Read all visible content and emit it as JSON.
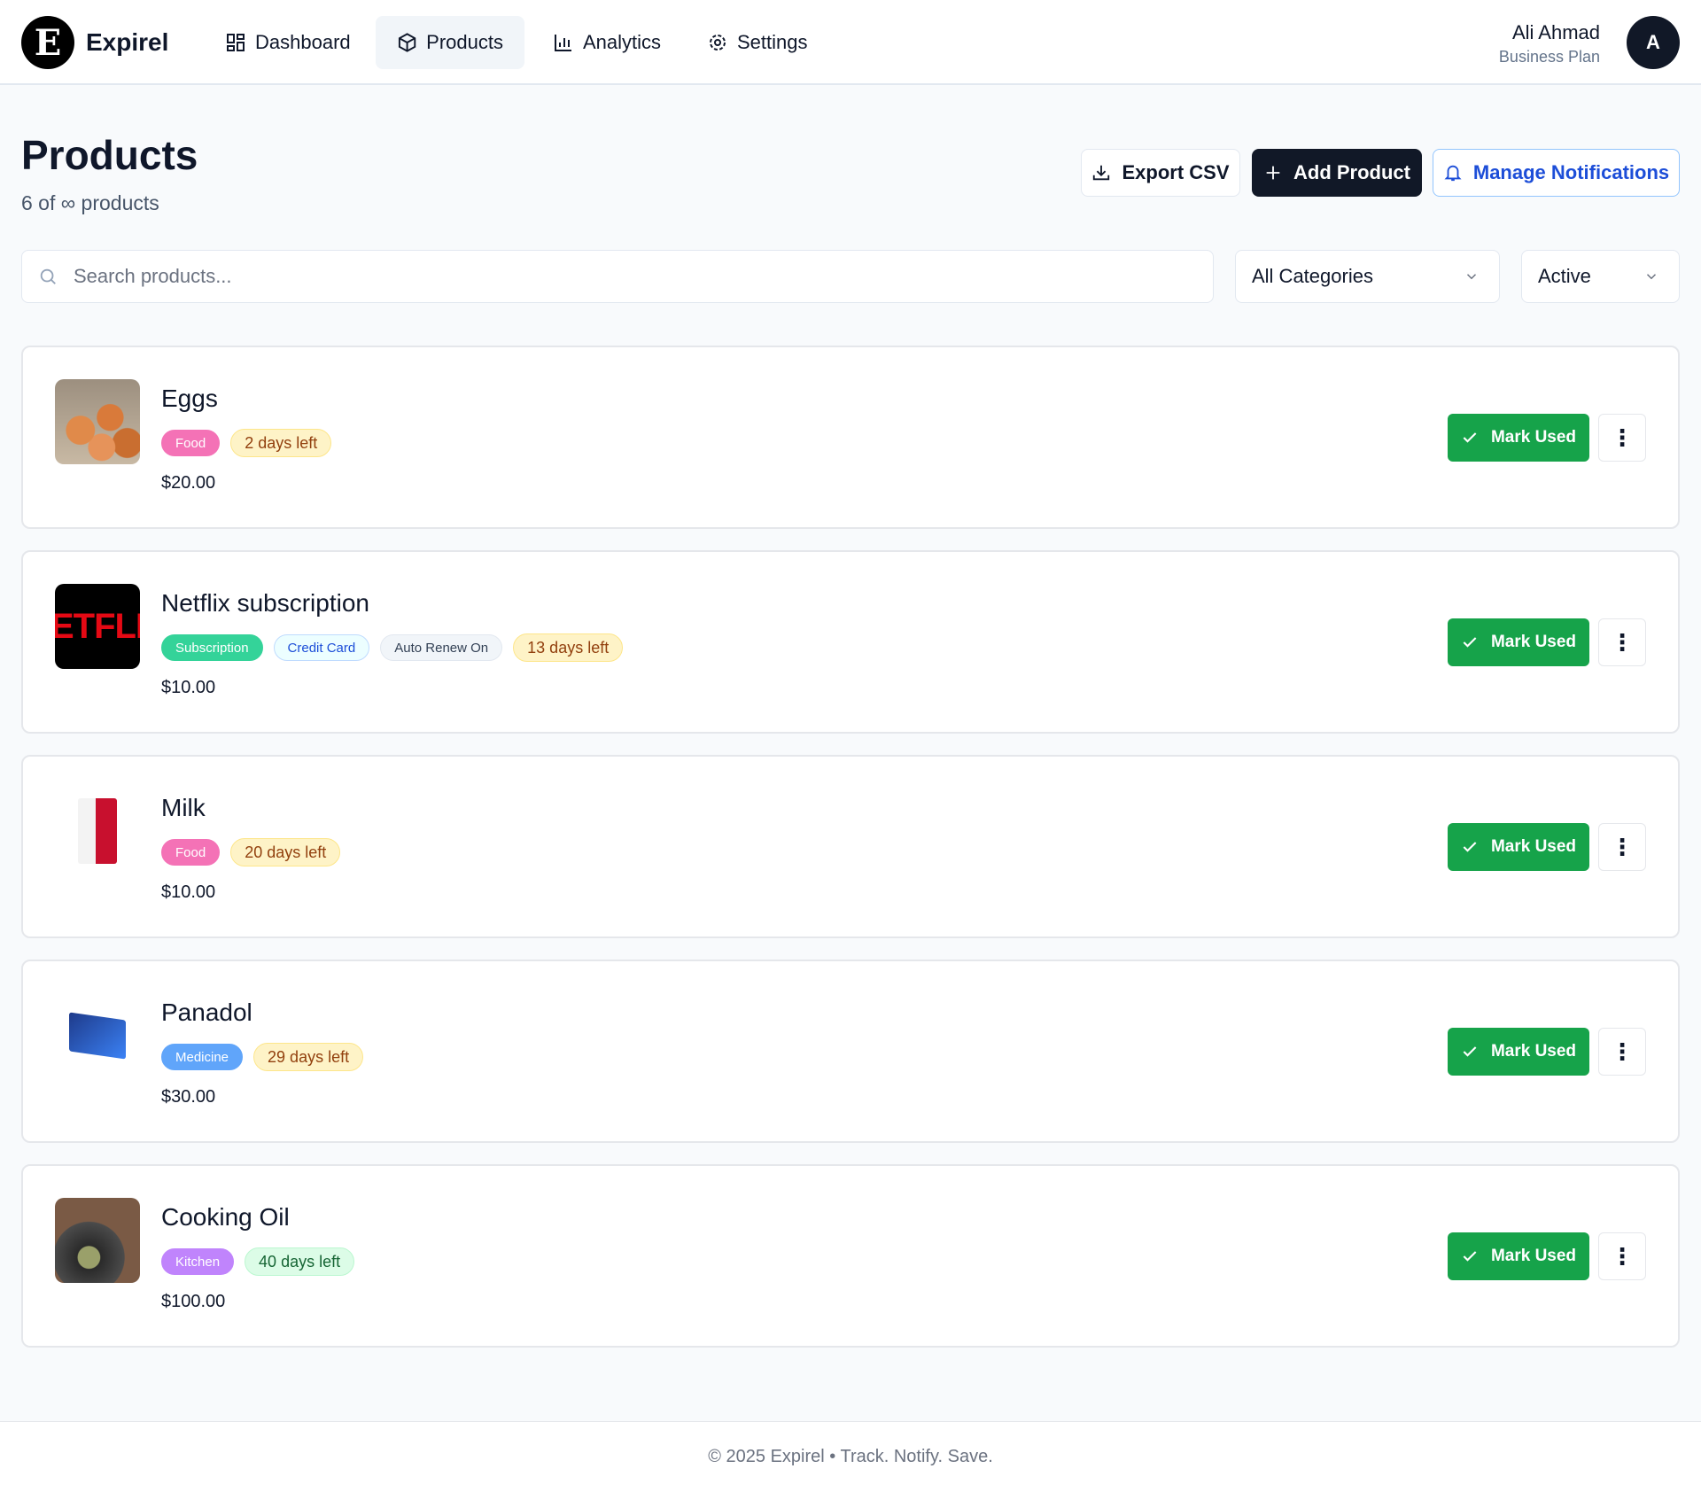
{
  "app": {
    "brand": "Expirel",
    "logo_letter": "E"
  },
  "nav": [
    {
      "label": "Dashboard",
      "icon": "dashboard-icon"
    },
    {
      "label": "Products",
      "icon": "box-icon",
      "active": true
    },
    {
      "label": "Analytics",
      "icon": "bar-chart-icon"
    },
    {
      "label": "Settings",
      "icon": "gear-icon"
    }
  ],
  "user": {
    "name": "Ali Ahmad",
    "plan": "Business Plan",
    "initial": "A"
  },
  "page": {
    "title": "Products",
    "subtitle": "6 of ∞ products"
  },
  "actions": {
    "export": "Export CSV",
    "add": "Add Product",
    "notifications": "Manage Notifications"
  },
  "filters": {
    "search_placeholder": "Search products...",
    "search_value": "",
    "category": "All Categories",
    "status": "Active"
  },
  "products": [
    {
      "name": "Eggs",
      "price": "$20.00",
      "image": "eggs",
      "badges": [
        {
          "text": "Food",
          "bg": "#f472b6",
          "fg": "#fff",
          "border": "#f472b6"
        },
        {
          "text": "2 days left",
          "bg": "#fef3c7",
          "fg": "#92400e",
          "border": "#fde68a",
          "days": true
        }
      ]
    },
    {
      "name": "Netflix subscription",
      "price": "$10.00",
      "image": "netflix",
      "badges": [
        {
          "text": "Subscription",
          "bg": "#34d399",
          "fg": "#fff",
          "border": "#34d399"
        },
        {
          "text": "Credit Card",
          "bg": "#ecfeff",
          "fg": "#1d4ed8",
          "border": "#bfdbfe"
        },
        {
          "text": "Auto Renew On",
          "bg": "#f1f5f9",
          "fg": "#334155",
          "border": "#e2e8f0"
        },
        {
          "text": "13 days left",
          "bg": "#fef3c7",
          "fg": "#92400e",
          "border": "#fde68a",
          "days": true
        }
      ]
    },
    {
      "name": "Milk",
      "price": "$10.00",
      "image": "milk",
      "badges": [
        {
          "text": "Food",
          "bg": "#f472b6",
          "fg": "#fff",
          "border": "#f472b6"
        },
        {
          "text": "20 days left",
          "bg": "#fef3c7",
          "fg": "#92400e",
          "border": "#fde68a",
          "days": true
        }
      ]
    },
    {
      "name": "Panadol",
      "price": "$30.00",
      "image": "panadol",
      "badges": [
        {
          "text": "Medicine",
          "bg": "#60a5fa",
          "fg": "#fff",
          "border": "#60a5fa"
        },
        {
          "text": "29 days left",
          "bg": "#fef3c7",
          "fg": "#92400e",
          "border": "#fde68a",
          "days": true
        }
      ]
    },
    {
      "name": "Cooking Oil",
      "price": "$100.00",
      "image": "oil",
      "badges": [
        {
          "text": "Kitchen",
          "bg": "#c084fc",
          "fg": "#fff",
          "border": "#c084fc"
        },
        {
          "text": "40 days left",
          "bg": "#dcfce7",
          "fg": "#166534",
          "border": "#bbf7d0",
          "days": true
        }
      ]
    }
  ],
  "netflix_logo_text": "ETFLI",
  "mark_used": "Mark Used",
  "footer": "© 2025 Expirel • Track. Notify. Save."
}
